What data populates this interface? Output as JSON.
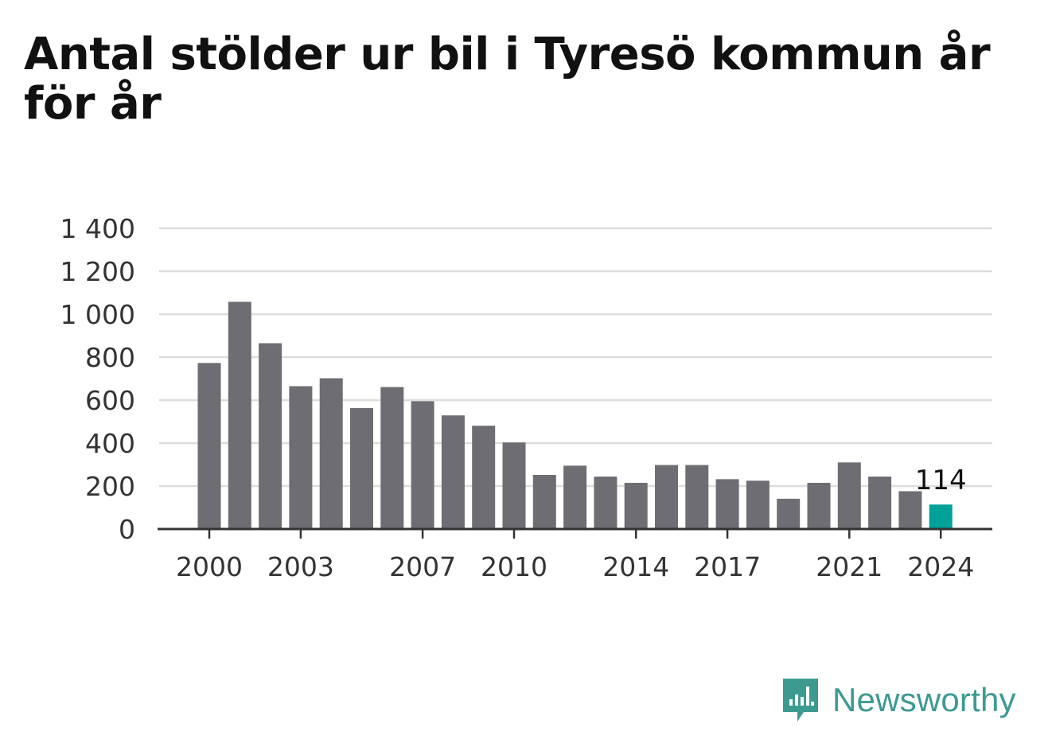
{
  "chart_data": {
    "type": "bar",
    "title": "Antal stölder ur bil i Tyresö kommun år för år",
    "categories": [
      "2000",
      "2001",
      "2002",
      "2003",
      "2004",
      "2005",
      "2006",
      "2007",
      "2008",
      "2009",
      "2010",
      "2011",
      "2012",
      "2013",
      "2014",
      "2015",
      "2016",
      "2017",
      "2018",
      "2019",
      "2020",
      "2021",
      "2022",
      "2023",
      "2024"
    ],
    "values": [
      773,
      1058,
      865,
      665,
      702,
      563,
      661,
      595,
      529,
      481,
      403,
      252,
      295,
      244,
      215,
      298,
      298,
      232,
      225,
      141,
      215,
      310,
      244,
      176,
      114
    ],
    "x_tick_labels": [
      "2000",
      "2003",
      "2007",
      "2010",
      "2014",
      "2017",
      "2021",
      "2024"
    ],
    "y_ticks": [
      0,
      200,
      400,
      600,
      800,
      1000,
      1200,
      1400
    ],
    "y_tick_labels": [
      "0",
      "200",
      "400",
      "600",
      "800",
      "1 000",
      "1 200",
      "1 400"
    ],
    "ylim": [
      0,
      1400
    ],
    "grid": true,
    "highlight": {
      "category": "2024",
      "label": "114"
    },
    "colors": {
      "bar": "#6e6d73",
      "highlight": "#00a199",
      "grid": "#dcdcdc",
      "axis": "#333333",
      "text": "#333333"
    }
  },
  "logo": {
    "text": "Newsworthy",
    "icon": "newsworthy-bar-chart-icon",
    "color": "#3c9a91"
  }
}
